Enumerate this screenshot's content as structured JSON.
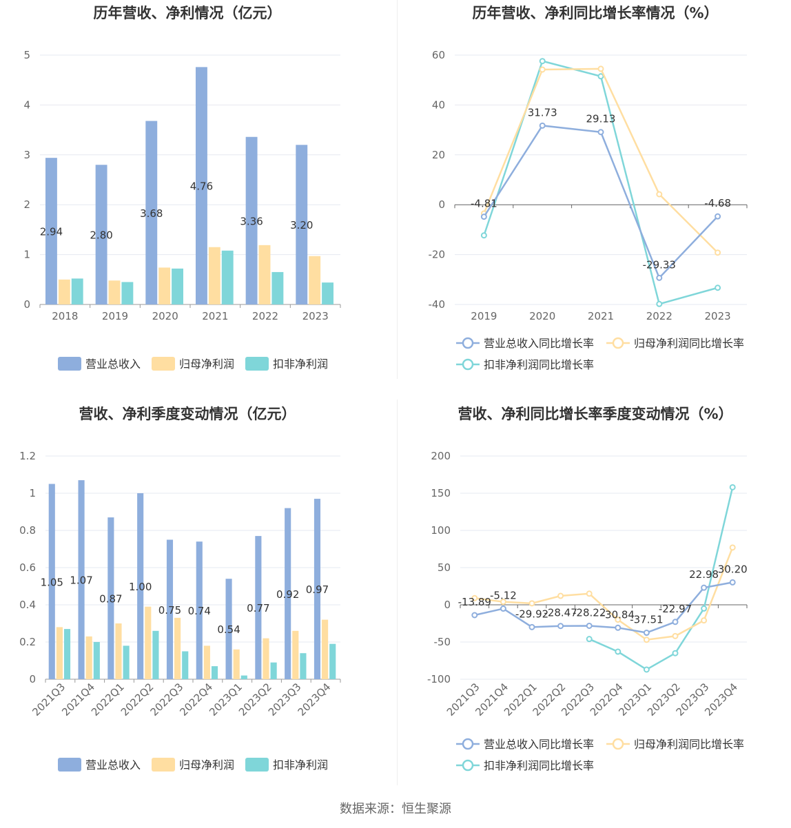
{
  "source": "数据来源：恒生聚源",
  "colors": {
    "revenue": "#8eaedd",
    "net_profit": "#ffdea1",
    "deducted_profit": "#7fd6d9",
    "grid": "#e6e8f0",
    "axis": "#999999",
    "zero_axis": "#666666",
    "title": "#333333",
    "label": "#333333",
    "tick": "#666666"
  },
  "chart_data": [
    {
      "id": "annual-values",
      "type": "bar",
      "title": "历年营收、净利情况（亿元）",
      "categories": [
        "2018",
        "2019",
        "2020",
        "2021",
        "2022",
        "2023"
      ],
      "ylim": [
        0,
        5
      ],
      "yticks": [
        0,
        1,
        2,
        3,
        4,
        5
      ],
      "grid": true,
      "legend_position": "bottom",
      "series": [
        {
          "name": "营业总收入",
          "color": "#8eaedd",
          "values": [
            2.94,
            2.8,
            3.68,
            4.76,
            3.36,
            3.2
          ],
          "labels": [
            "2.94",
            "2.80",
            "3.68",
            "4.76",
            "3.36",
            "3.20"
          ]
        },
        {
          "name": "归母净利润",
          "color": "#ffdea1",
          "values": [
            0.5,
            0.48,
            0.74,
            1.15,
            1.19,
            0.97
          ]
        },
        {
          "name": "扣非净利润",
          "color": "#7fd6d9",
          "values": [
            0.52,
            0.45,
            0.72,
            1.08,
            0.65,
            0.44
          ]
        }
      ]
    },
    {
      "id": "annual-growth",
      "type": "line",
      "title": "历年营收、净利同比增长率情况（%）",
      "categories": [
        "2019",
        "2020",
        "2021",
        "2022",
        "2023"
      ],
      "ylim": [
        -40,
        60
      ],
      "yticks": [
        -40,
        -20,
        0,
        20,
        40,
        60
      ],
      "grid": true,
      "legend_position": "bottom",
      "series": [
        {
          "name": "营业总收入同比增长率",
          "color": "#8eaedd",
          "values": [
            -4.81,
            31.73,
            29.13,
            -29.33,
            -4.68
          ],
          "labels": [
            "-4.81",
            "31.73",
            "29.13",
            "-29.33",
            "-4.68"
          ]
        },
        {
          "name": "归母净利润同比增长率",
          "color": "#ffdea1",
          "values": [
            -3.5,
            54.2,
            54.5,
            4.2,
            -19.2
          ]
        },
        {
          "name": "扣非净利润同比增长率",
          "color": "#7fd6d9",
          "values": [
            -12.3,
            57.6,
            51.5,
            -39.8,
            -33.3
          ]
        }
      ]
    },
    {
      "id": "quarterly-values",
      "type": "bar",
      "title": "营收、净利季度变动情况（亿元）",
      "categories": [
        "2021Q3",
        "2021Q4",
        "2022Q1",
        "2022Q2",
        "2022Q3",
        "2022Q4",
        "2023Q1",
        "2023Q2",
        "2023Q3",
        "2023Q4"
      ],
      "ylim": [
        0,
        1.2
      ],
      "yticks": [
        0,
        0.2,
        0.4,
        0.6,
        0.8,
        1,
        1.2
      ],
      "ytick_labels": [
        "0",
        "0.2",
        "0.4",
        "0.6",
        "0.8",
        "1",
        "1.2"
      ],
      "grid": true,
      "legend_position": "bottom",
      "series": [
        {
          "name": "营业总收入",
          "color": "#8eaedd",
          "values": [
            1.05,
            1.07,
            0.87,
            1.0,
            0.75,
            0.74,
            0.54,
            0.77,
            0.92,
            0.97
          ],
          "labels": [
            "1.05",
            "1.07",
            "0.87",
            "1.00",
            "0.75",
            "0.74",
            "0.54",
            "0.77",
            "0.92",
            "0.97"
          ]
        },
        {
          "name": "归母净利润",
          "color": "#ffdea1",
          "values": [
            0.28,
            0.23,
            0.3,
            0.39,
            0.33,
            0.18,
            0.16,
            0.22,
            0.26,
            0.32
          ]
        },
        {
          "name": "扣非净利润",
          "color": "#7fd6d9",
          "values": [
            0.27,
            0.2,
            0.18,
            0.26,
            0.15,
            0.07,
            0.02,
            0.09,
            0.14,
            0.19
          ]
        }
      ]
    },
    {
      "id": "quarterly-growth",
      "type": "line",
      "title": "营收、净利同比增长率季度变动情况（%）",
      "categories": [
        "2021Q3",
        "2021Q4",
        "2022Q1",
        "2022Q2",
        "2022Q3",
        "2022Q4",
        "2023Q1",
        "2023Q2",
        "2023Q3",
        "2023Q4"
      ],
      "ylim": [
        -100,
        200
      ],
      "yticks": [
        -100,
        -50,
        0,
        50,
        100,
        150,
        200
      ],
      "grid": true,
      "legend_position": "bottom",
      "series": [
        {
          "name": "营业总收入同比增长率",
          "color": "#8eaedd",
          "values": [
            -13.89,
            -5.12,
            -29.92,
            -28.47,
            -28.22,
            -30.84,
            -37.51,
            -22.97,
            22.98,
            30.2
          ],
          "labels": [
            "-13.89",
            "-5.12",
            "-29.92",
            "-28.47",
            "-28.22",
            "-30.84",
            "-37.51",
            "-22.97",
            "22.98",
            "30.20"
          ]
        },
        {
          "name": "归母净利润同比增长率",
          "color": "#ffdea1",
          "values": [
            9,
            4,
            2,
            12,
            15,
            -20,
            -47,
            -42,
            -21,
            77
          ]
        },
        {
          "name": "扣非净利润同比增长率",
          "color": "#7fd6d9",
          "values": [
            null,
            null,
            null,
            null,
            -46,
            -63,
            -87,
            -65,
            -5,
            158
          ]
        }
      ]
    }
  ]
}
